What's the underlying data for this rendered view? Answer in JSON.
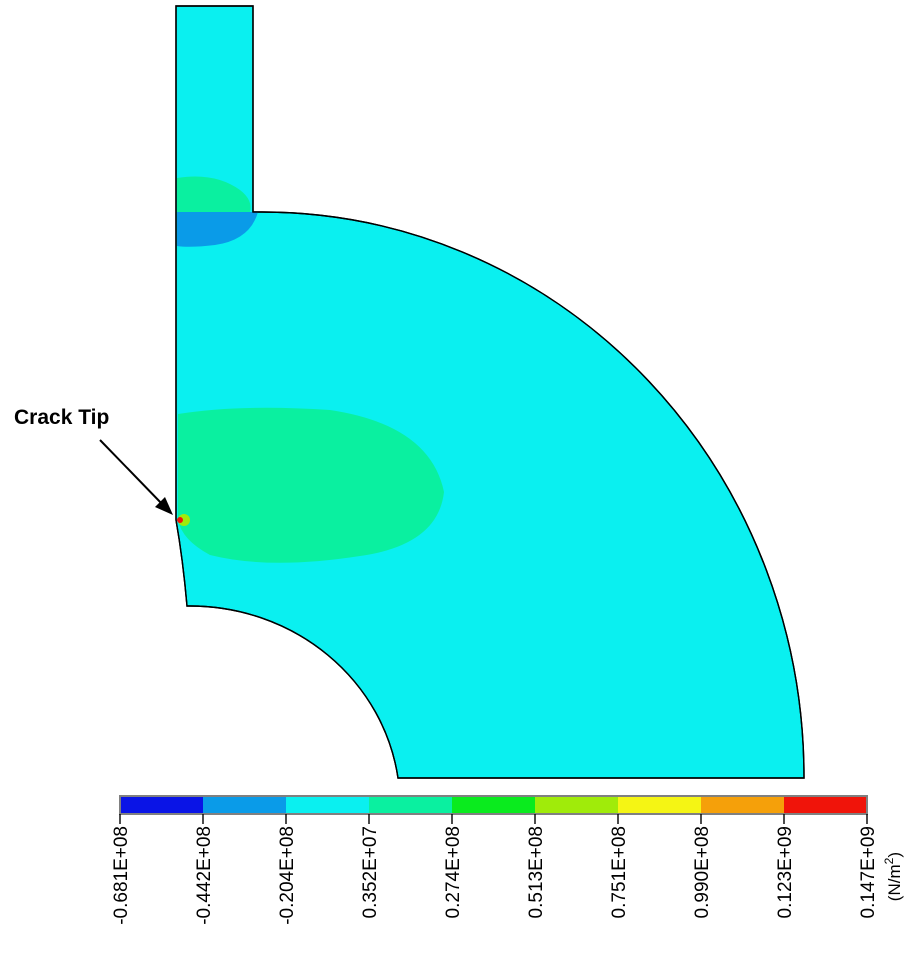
{
  "annotation": {
    "label": "Crack Tip"
  },
  "legend": {
    "unit_base": "(N/m",
    "unit_exp": "2",
    "unit_close": ")",
    "ticks": [
      "-0.681E+08",
      "-0.442E+08",
      "-0.204E+08",
      "0.352E+07",
      "0.274E+08",
      "0.513E+08",
      "0.751E+08",
      "0.990E+08",
      "0.123E+09",
      "0.147E+09"
    ],
    "colors": [
      "#0a14e6",
      "#0a9be8",
      "#0af0f0",
      "#0af0a0",
      "#0aeb1e",
      "#a0eb0a",
      "#f5f514",
      "#f5a00a",
      "#f0140a"
    ]
  },
  "palette": {
    "background": "#0af0f0",
    "mid_stress": "#0af0a0",
    "low_stress": "#0a9be8",
    "high_stress": "#f0140a"
  }
}
